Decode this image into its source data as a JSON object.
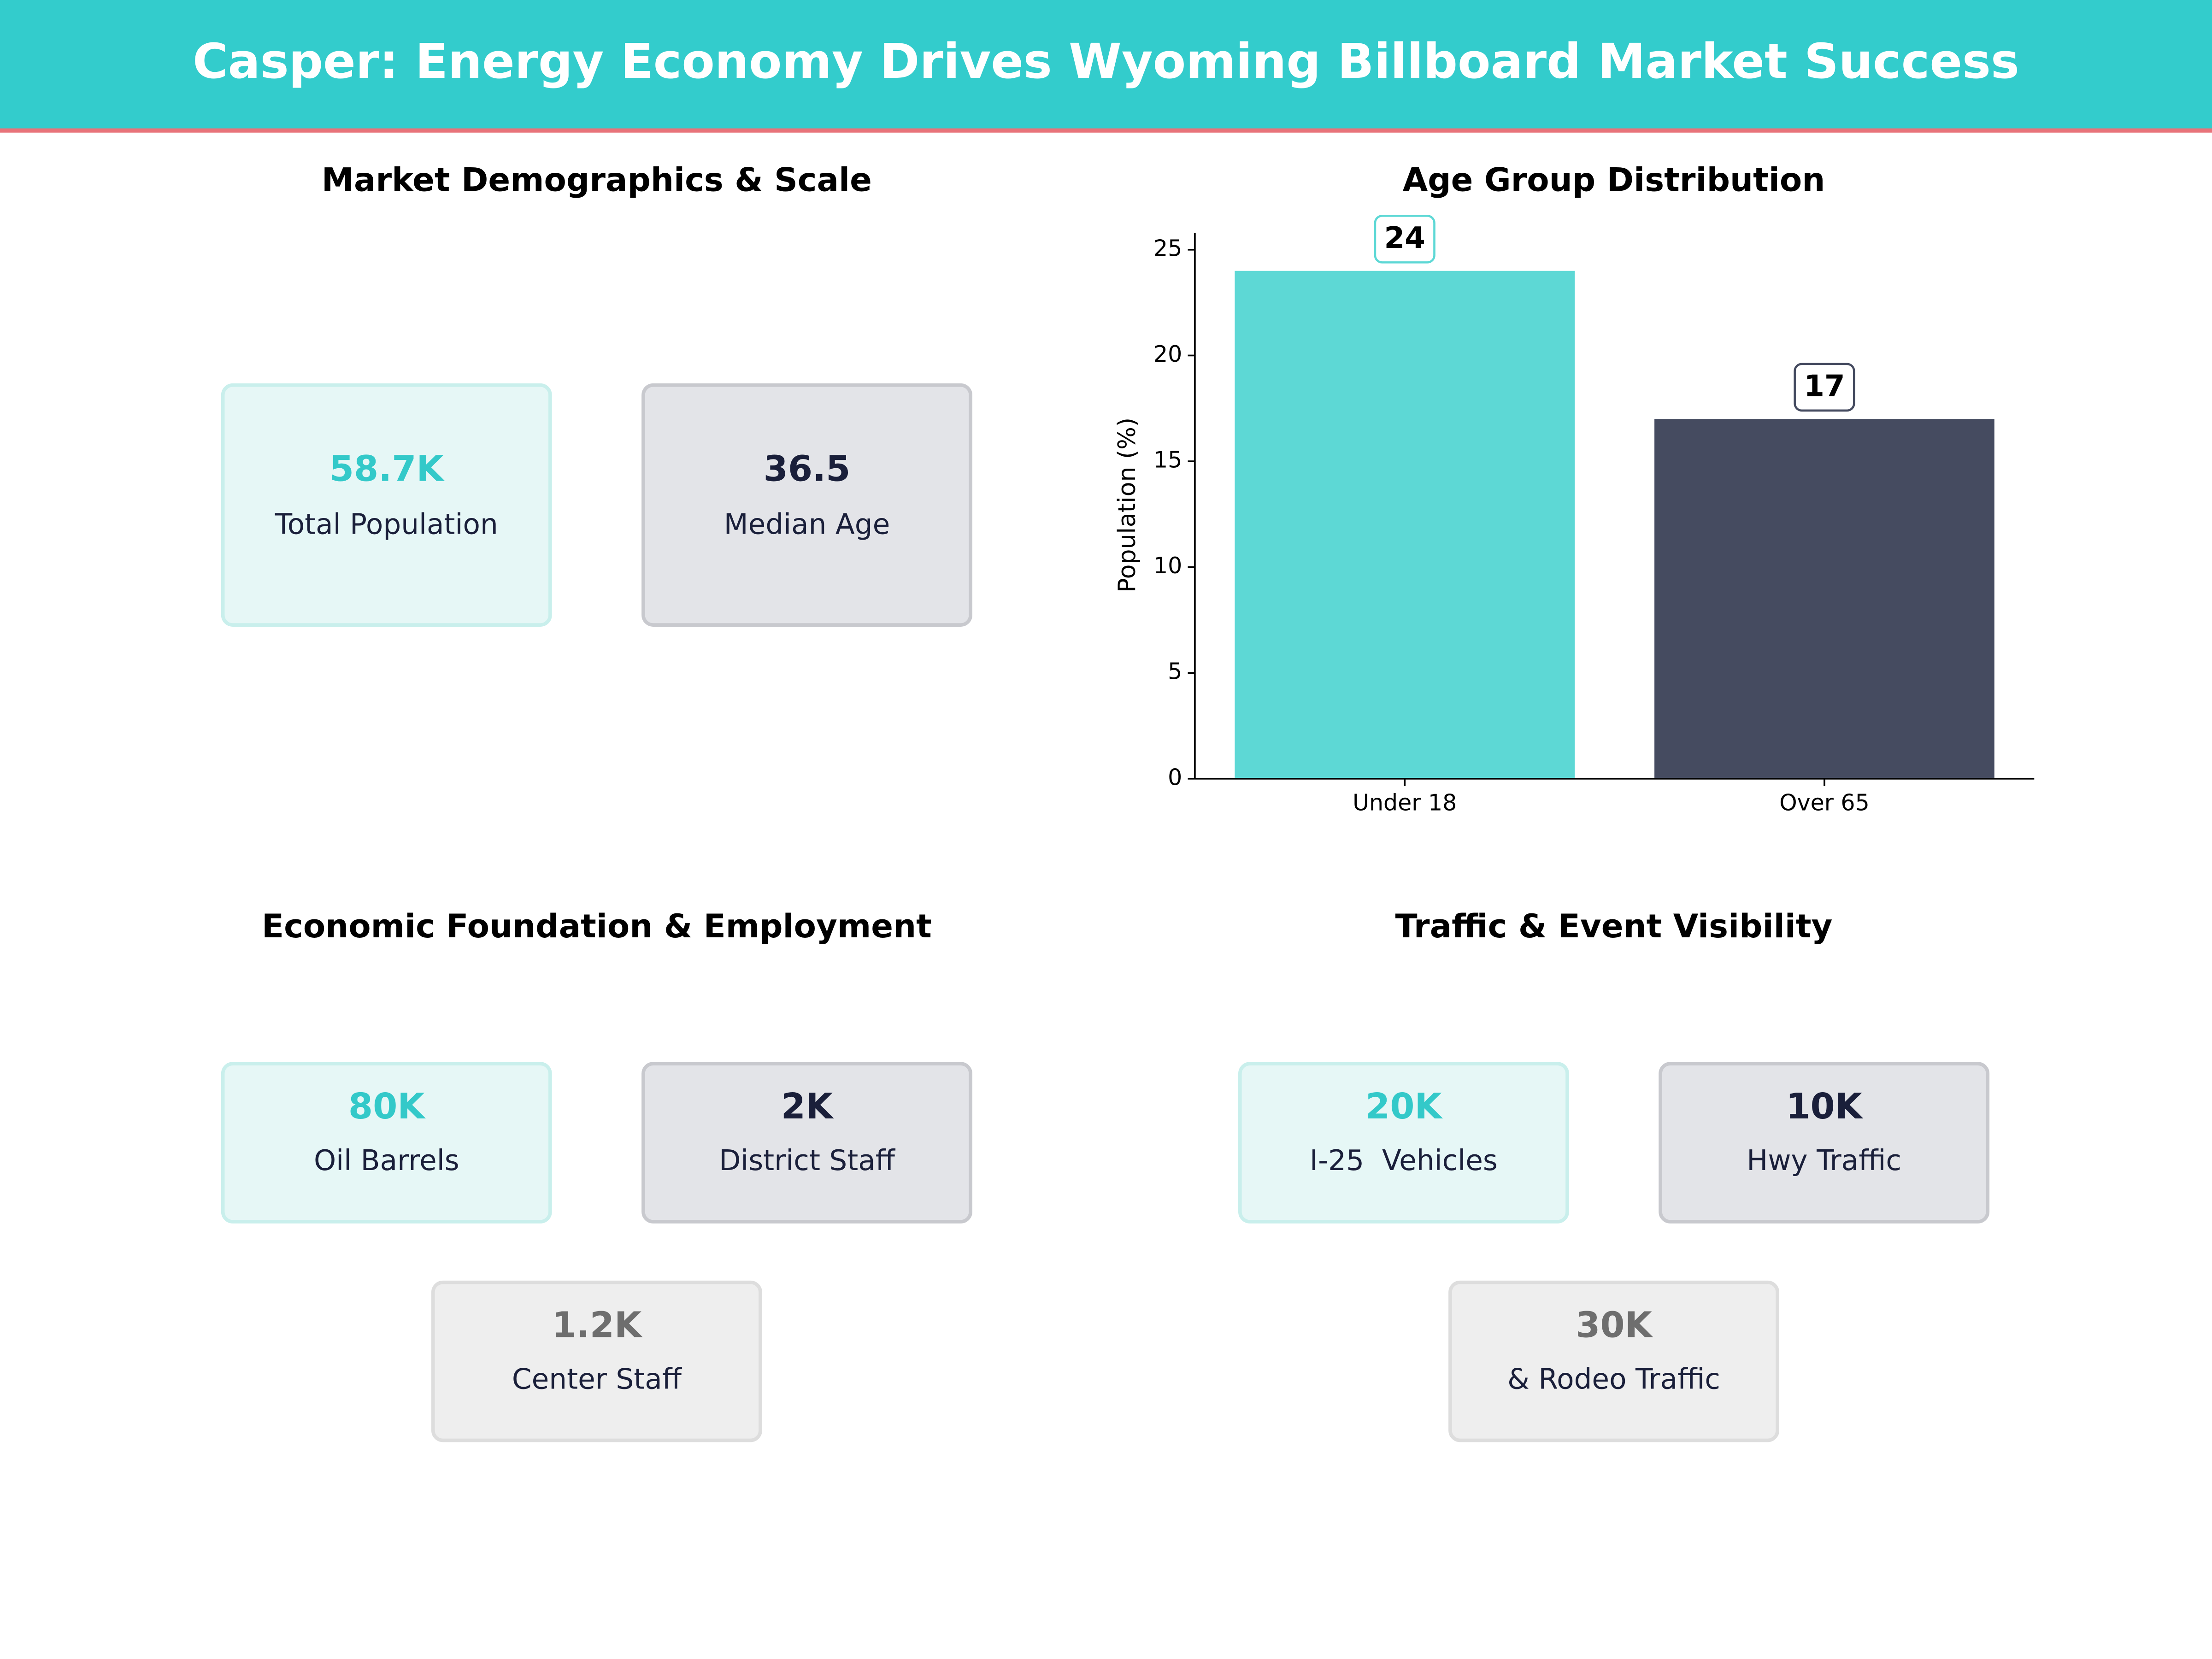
{
  "title": "Casper: Energy Economy Drives Wyoming Billboard Market Success",
  "demographics": {
    "title": "Market Demographics & Scale",
    "cards": [
      {
        "value": "58.7K",
        "label": "Total Population"
      },
      {
        "value": "36.5",
        "label": "Median Age"
      }
    ]
  },
  "chart_data": {
    "type": "bar",
    "title": "Age Group Distribution",
    "y_label": "Population (%)",
    "categories": [
      "Under 18",
      "Over 65"
    ],
    "values": [
      24,
      17
    ],
    "colors": [
      "#5dd8d5",
      "#454b60"
    ],
    "ylim": [
      0,
      25.8
    ],
    "yticks": [
      0,
      5,
      10,
      15,
      20,
      25
    ]
  },
  "economy": {
    "title": "Economic Foundation & Employment",
    "cards": [
      {
        "value": "80K",
        "label": "Oil Barrels"
      },
      {
        "value": "2K",
        "label": "District Staff"
      },
      {
        "value": "1.2K",
        "label": "Center Staff"
      }
    ]
  },
  "traffic": {
    "title": "Traffic & Event Visibility",
    "cards": [
      {
        "value": "20K",
        "label": "I-25  Vehicles"
      },
      {
        "value": "10K",
        "label": "Hwy Traffic"
      },
      {
        "value": "30K",
        "label": "& Rodeo Traffic"
      }
    ]
  }
}
